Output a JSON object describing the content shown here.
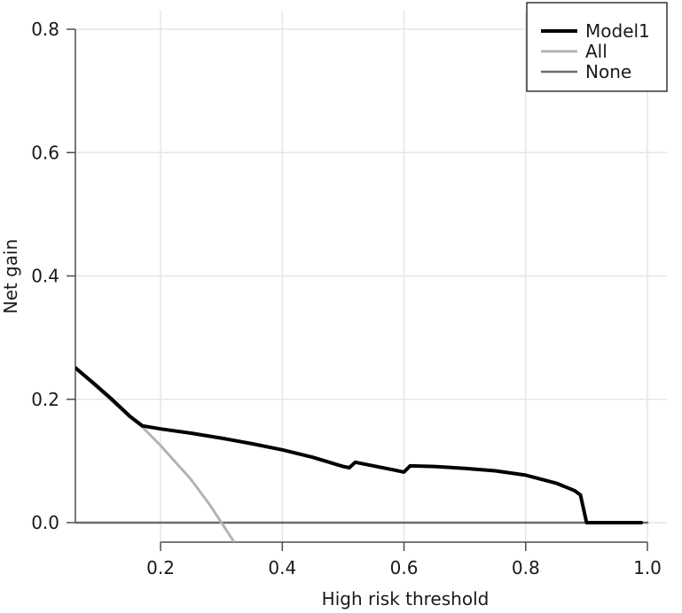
{
  "chart_data": {
    "type": "line",
    "xlabel": "High risk threshold",
    "ylabel": "Net gain",
    "xlim": [
      0.06,
      1.0
    ],
    "ylim": [
      -0.03,
      0.82
    ],
    "x_ticks": [
      "0.2",
      "0.4",
      "0.6",
      "0.8",
      "1.0"
    ],
    "y_ticks": [
      "0.0",
      "0.2",
      "0.4",
      "0.6",
      "0.8"
    ],
    "grid": true,
    "legend_position": "top-right",
    "series": [
      {
        "name": "Model1",
        "color": "#000000",
        "x": [
          0.06,
          0.09,
          0.12,
          0.15,
          0.17,
          0.2,
          0.25,
          0.3,
          0.35,
          0.4,
          0.45,
          0.5,
          0.51,
          0.52,
          0.55,
          0.58,
          0.6,
          0.61,
          0.65,
          0.7,
          0.75,
          0.8,
          0.85,
          0.88,
          0.89,
          0.9,
          0.95,
          0.99
        ],
        "y": [
          0.251,
          0.226,
          0.2,
          0.172,
          0.157,
          0.152,
          0.145,
          0.137,
          0.128,
          0.118,
          0.106,
          0.091,
          0.089,
          0.098,
          0.092,
          0.086,
          0.082,
          0.092,
          0.091,
          0.088,
          0.084,
          0.077,
          0.064,
          0.052,
          0.045,
          0.0,
          0.0,
          0.0
        ]
      },
      {
        "name": "All",
        "color": "#b3b3b3",
        "x": [
          0.06,
          0.1,
          0.15,
          0.17,
          0.2,
          0.25,
          0.28,
          0.3,
          0.32
        ],
        "y": [
          0.25,
          0.215,
          0.17,
          0.155,
          0.125,
          0.07,
          0.03,
          0.0,
          -0.03
        ]
      },
      {
        "name": "None",
        "color": "#6b6b6b",
        "x": [
          0.06,
          1.0
        ],
        "y": [
          0.0,
          0.0
        ]
      }
    ]
  }
}
